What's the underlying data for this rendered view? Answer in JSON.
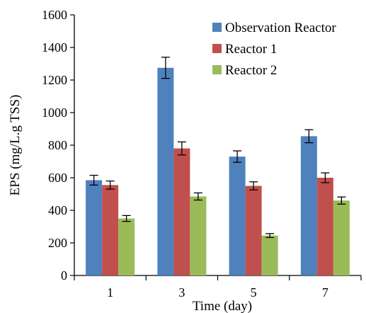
{
  "chart_data": {
    "type": "bar",
    "categories": [
      "1",
      "3",
      "5",
      "7"
    ],
    "series": [
      {
        "name": "Observation Reactor",
        "color": "#4F81BD",
        "values": [
          585,
          1275,
          730,
          855
        ],
        "errors": [
          30,
          65,
          35,
          40
        ]
      },
      {
        "name": "Reactor 1",
        "color": "#C0504D",
        "values": [
          555,
          780,
          550,
          600
        ],
        "errors": [
          25,
          40,
          25,
          30
        ]
      },
      {
        "name": "Reactor 2",
        "color": "#9BBB59",
        "values": [
          350,
          485,
          245,
          460
        ],
        "errors": [
          18,
          22,
          12,
          22
        ]
      }
    ],
    "xlabel": "Time (day)",
    "ylabel": "EPS (mg/L.g TSS)",
    "ylim": [
      0,
      1600
    ],
    "yticks": [
      0,
      200,
      400,
      600,
      800,
      1000,
      1200,
      1400,
      1600
    ],
    "grid": false,
    "legend_position": "top-right"
  }
}
